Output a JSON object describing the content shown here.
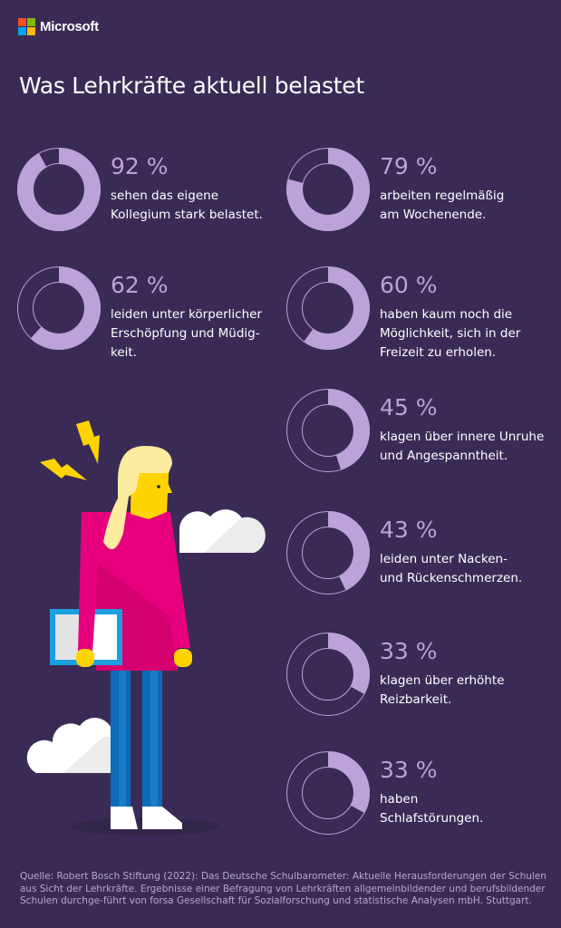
{
  "brand": {
    "name": "Microsoft",
    "colors": [
      "#f25022",
      "#7fba00",
      "#00a4ef",
      "#ffb900"
    ]
  },
  "title": "Was Lehrkräfte aktuell belastet",
  "colors": {
    "background": "#3a2b56",
    "accent": "#bba2d8"
  },
  "chart_data": {
    "type": "donut",
    "title": "Was Lehrkräfte aktuell belastet",
    "unit": "%",
    "items": [
      {
        "value": 92,
        "label": "92 %",
        "text": "sehen das eigene\nKollegium stark belastet."
      },
      {
        "value": 79,
        "label": "79 %",
        "text": "arbeiten regelmäßig\nam Wochenende."
      },
      {
        "value": 62,
        "label": "62 %",
        "text": "leiden unter körperlicher\nErschöpfung und Müdig-\nkeit."
      },
      {
        "value": 60,
        "label": "60 %",
        "text": "haben kaum noch die\nMöglichkeit, sich in der\nFreizeit zu erholen."
      },
      {
        "value": 45,
        "label": "45 %",
        "text": "klagen über innere Unruhe\nund Angespanntheit."
      },
      {
        "value": 43,
        "label": "43 %",
        "text": "leiden unter Nacken-\nund Rückenschmerzen."
      },
      {
        "value": 33,
        "label": "33 %",
        "text": "klagen über erhöhte\nReizbarkeit."
      },
      {
        "value": 33,
        "label": "33 %",
        "text": "haben\nSchlafstörungen."
      }
    ]
  },
  "footer": "Quelle: Robert Bosch Stiftung (2022): Das Deutsche Schulbarometer: Aktuelle Herausforderungen der Schulen aus Sicht der Lehrkräfte. Ergebnisse einer Befragung von Lehrkräften allgemeinbildender und berufsbildender Schulen durchge-führt von forsa Gesellschaft für Sozialforschung und statistische Analysen mbH. Stuttgart."
}
